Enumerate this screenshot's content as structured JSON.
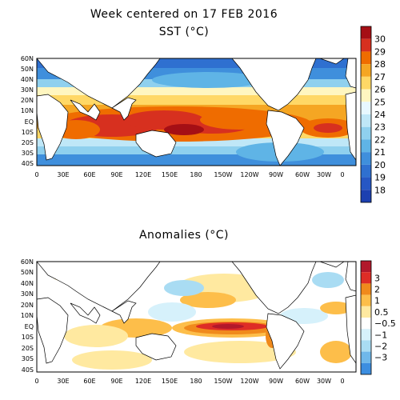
{
  "header": {
    "title": "Week centered on 17 FEB 2016",
    "sst_title": "SST (°C)",
    "anom_title": "Anomalies (°C)"
  },
  "lat_labels": [
    "60N",
    "50N",
    "40N",
    "30N",
    "20N",
    "10N",
    "EQ",
    "10S",
    "20S",
    "30S",
    "40S"
  ],
  "lon_labels": [
    "0",
    "30E",
    "60E",
    "90E",
    "120E",
    "150E",
    "180",
    "150W",
    "120W",
    "90W",
    "60W",
    "30W",
    "0"
  ],
  "sst_colorbar": {
    "labels": [
      "30",
      "29",
      "28",
      "27",
      "26",
      "25",
      "24",
      "23",
      "22",
      "21",
      "20",
      "19",
      "18"
    ],
    "colors": [
      "#a50f15",
      "#d7301f",
      "#ef6c00",
      "#f5a623",
      "#ffd866",
      "#fff6c0",
      "#e8f8ff",
      "#bfe7f7",
      "#8fd0ee",
      "#5fb4e6",
      "#3f8fdc",
      "#2f70d0",
      "#2657c4",
      "#1c40b0"
    ]
  },
  "anom_colorbar": {
    "labels": [
      "3",
      "2",
      "1",
      "0.5",
      "−0.5",
      "−1",
      "−2",
      "−3"
    ],
    "colors": [
      "#b2182b",
      "#de2d26",
      "#f08a1c",
      "#fdbe4a",
      "#ffe9a0",
      "#ffffff",
      "#d6f1fb",
      "#a9dcf3",
      "#6fb8ea",
      "#3c8ee0"
    ]
  },
  "chart_data": [
    {
      "type": "heatmap",
      "title": "Week centered on 17 FEB 2016 SST (°C)",
      "x_range": [
        "0",
        "0 (360)"
      ],
      "y_range": [
        "40S",
        "60N"
      ],
      "colorbar_range": [
        18,
        30
      ],
      "notable_features": [
        "warm pool > 29°C Indo-Pacific",
        "warm equatorial eastern Pacific ~28–29°C",
        "cold high latitudes < 18°C"
      ]
    },
    {
      "type": "heatmap",
      "title": "Anomalies (°C)",
      "x_range": [
        "0",
        "0 (360)"
      ],
      "y_range": [
        "40S",
        "60N"
      ],
      "colorbar_range": [
        -3,
        3
      ],
      "notable_features": [
        "strong positive anomaly +2 to +3°C central-eastern equatorial Pacific"
      ]
    }
  ]
}
